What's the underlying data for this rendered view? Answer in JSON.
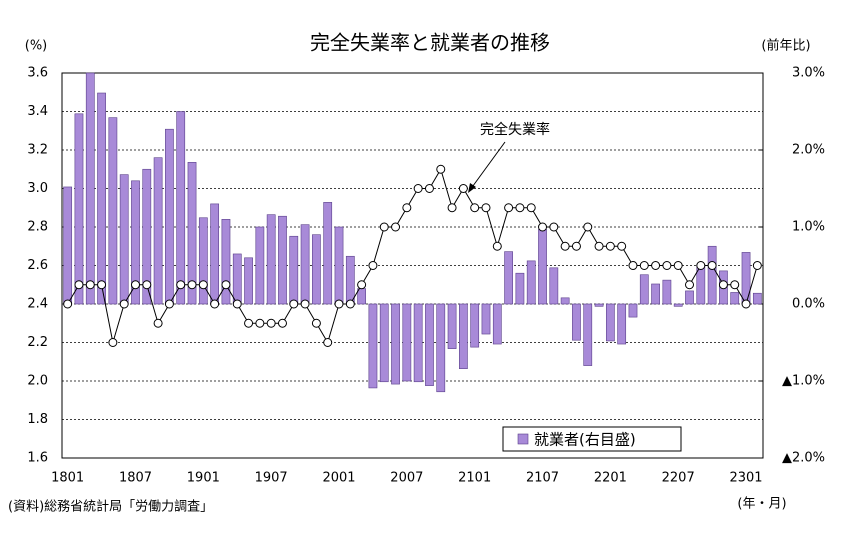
{
  "chart_data": {
    "type": "bar_line",
    "title": "完全失業率と就業者の推移",
    "ylabel": "(%)",
    "y2label": "(前年比)",
    "xlabel": "(年・月)",
    "source": "(資料)総務省統計局「労働力調査」",
    "annotation": "完全失業率",
    "categories": [
      "1801",
      null,
      null,
      null,
      null,
      null,
      "1807",
      null,
      null,
      null,
      null,
      null,
      "1901",
      null,
      null,
      null,
      null,
      null,
      "1907",
      null,
      null,
      null,
      null,
      null,
      "2001",
      null,
      null,
      null,
      null,
      null,
      "2007",
      null,
      null,
      null,
      null,
      null,
      "2101",
      null,
      null,
      null,
      null,
      null,
      "2107",
      null,
      null,
      null,
      null,
      null,
      "2201",
      null,
      null,
      null,
      null,
      null,
      "2207",
      null,
      null,
      null,
      null,
      null,
      "2301",
      null
    ],
    "series": [
      {
        "name": "完全失業率",
        "type": "line",
        "color": "#000000",
        "axis": "y",
        "values": [
          2.4,
          2.5,
          2.5,
          2.5,
          2.2,
          2.4,
          2.5,
          2.5,
          2.3,
          2.4,
          2.5,
          2.5,
          2.5,
          2.4,
          2.5,
          2.4,
          2.3,
          2.3,
          2.3,
          2.3,
          2.4,
          2.4,
          2.3,
          2.2,
          2.4,
          2.4,
          2.5,
          2.6,
          2.8,
          2.8,
          2.9,
          3.0,
          3.0,
          3.1,
          2.9,
          3.0,
          2.9,
          2.9,
          2.7,
          2.9,
          2.9,
          2.9,
          2.8,
          2.8,
          2.7,
          2.7,
          2.8,
          2.7,
          2.7,
          2.7,
          2.6,
          2.6,
          2.6,
          2.6,
          2.6,
          2.5,
          2.6,
          2.6,
          2.5,
          2.5,
          2.4,
          2.6
        ]
      },
      {
        "name": "就業者(右目盛)",
        "type": "bar",
        "color": "#a88ad8",
        "axis": "y2",
        "values": [
          1.52,
          2.47,
          3.0,
          2.74,
          2.42,
          1.68,
          1.6,
          1.75,
          1.9,
          2.27,
          2.5,
          1.84,
          1.12,
          1.3,
          1.1,
          0.65,
          0.6,
          1.0,
          1.16,
          1.14,
          0.88,
          1.03,
          0.9,
          1.32,
          1.0,
          0.62,
          0.2,
          -1.09,
          -1.01,
          -1.04,
          -1.0,
          -1.01,
          -1.06,
          -1.14,
          -0.58,
          -0.84,
          -0.56,
          -0.39,
          -0.52,
          0.68,
          0.4,
          0.56,
          0.97,
          0.47,
          0.08,
          -0.47,
          -0.8,
          -0.03,
          -0.48,
          -0.52,
          -0.17,
          0.38,
          0.26,
          0.31,
          -0.03,
          0.17,
          0.5,
          0.75,
          0.43,
          0.15,
          0.67,
          0.14
        ]
      }
    ],
    "ylim": [
      1.6,
      3.6
    ],
    "yticks": [
      1.6,
      1.8,
      {
        "value": 2,
        "label": "2.0"
      },
      2.2,
      2.4,
      2.6,
      2.8,
      {
        "value": 3,
        "label": "3.0"
      },
      3.2,
      3.4,
      3.6
    ],
    "y2lim": [
      -2,
      3
    ],
    "y2ticks": [
      {
        "value": -2,
        "label": "▲2.0%"
      },
      {
        "value": -1,
        "label": "▲1.0%"
      },
      {
        "value": 0,
        "label": "0.0%"
      },
      {
        "value": 1,
        "label": "1.0%"
      },
      {
        "value": 2,
        "label": "2.0%"
      },
      {
        "value": 3,
        "label": "3.0%"
      }
    ],
    "grid": true
  }
}
